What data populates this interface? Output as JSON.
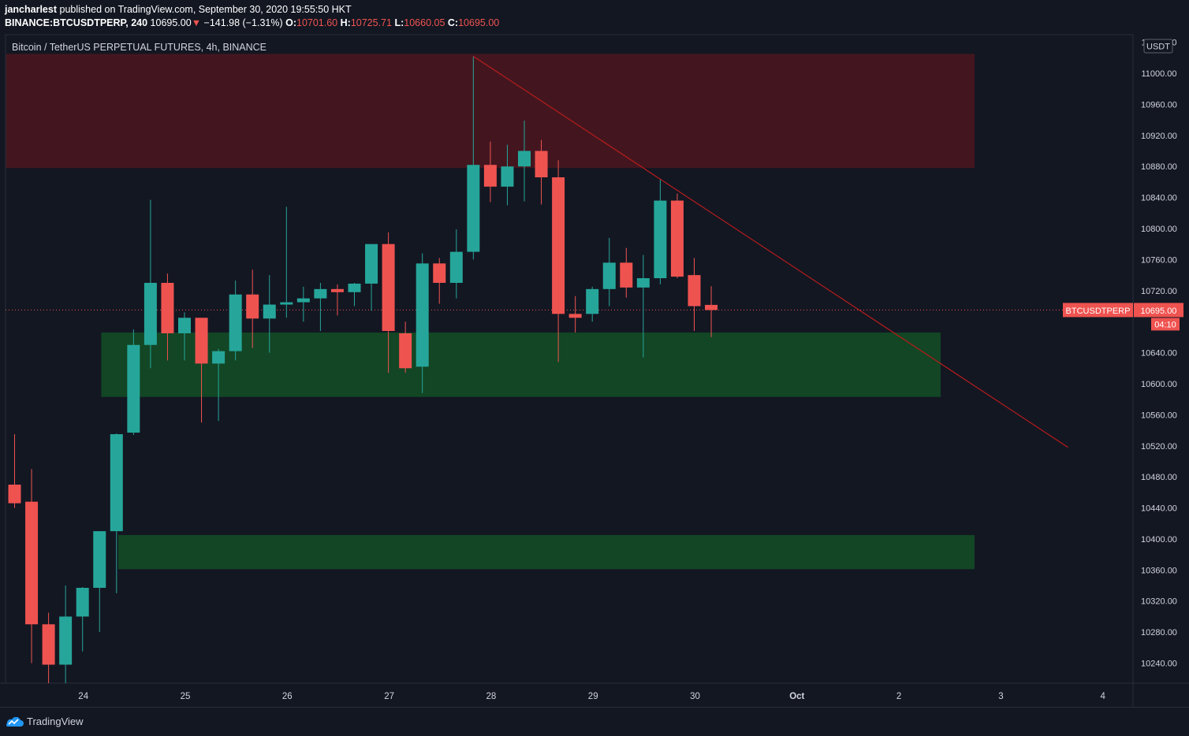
{
  "header": {
    "author": "jancharlest",
    "published_text": "published on TradingView.com, September 30, 2020 19:55:50 HKT",
    "symbol": "BINANCE:BTCUSDTPERP, 240",
    "last": "10695.00",
    "change_arrow": "▼",
    "change": "−141.98 (−1.31%)",
    "o_label": "O:",
    "o_value": "10701.60",
    "h_label": "H:",
    "h_value": "10725.71",
    "l_label": "L:",
    "l_value": "10660.05",
    "c_label": "C:",
    "c_value": "10695.00"
  },
  "chart_data": {
    "type": "candlestick",
    "title": "Bitcoin / TetherUS PERPETUAL FUTURES, 4h, BINANCE",
    "currency_label": "USDT",
    "symbol_label": "BTCUSDTPERP",
    "price_label": "10695.00",
    "countdown_label": "04:10",
    "ylim": [
      10200,
      11040
    ],
    "y_ticks": [
      10240,
      10280,
      10320,
      10360,
      10400,
      10440,
      10480,
      10520,
      10560,
      10600,
      10640,
      10680,
      10720,
      10760,
      10800,
      10840,
      10880,
      10920,
      10960,
      11000,
      11040
    ],
    "y_tick_labels": [
      "10240.00",
      "10280.00",
      "10320.00",
      "10360.00",
      "10400.00",
      "10440.00",
      "10480.00",
      "10520.00",
      "10560.00",
      "10600.00",
      "10640.00",
      "",
      "10720.00",
      "10760.00",
      "10800.00",
      "10840.00",
      "10880.00",
      "10920.00",
      "10960.00",
      "11000.00",
      "11040.00"
    ],
    "x_ticks": [
      "24",
      "25",
      "26",
      "27",
      "28",
      "29",
      "30",
      "Oct",
      "2",
      "3",
      "4"
    ],
    "x_tick_index": [
      4,
      10,
      16,
      22,
      28,
      34,
      40,
      46,
      52,
      58,
      64
    ],
    "last_price": 10695,
    "candles": [
      {
        "o": 10470,
        "h": 10535,
        "l": 10440,
        "c": 10446
      },
      {
        "o": 10448,
        "h": 10490,
        "l": 10240,
        "c": 10290
      },
      {
        "o": 10290,
        "h": 10305,
        "l": 10210,
        "c": 10238
      },
      {
        "o": 10238,
        "h": 10340,
        "l": 10212,
        "c": 10300
      },
      {
        "o": 10300,
        "h": 10338,
        "l": 10255,
        "c": 10337
      },
      {
        "o": 10337,
        "h": 10410,
        "l": 10280,
        "c": 10410
      },
      {
        "o": 10410,
        "h": 10536,
        "l": 10330,
        "c": 10535
      },
      {
        "o": 10537,
        "h": 10670,
        "l": 10534,
        "c": 10650
      },
      {
        "o": 10650,
        "h": 10837,
        "l": 10620,
        "c": 10730
      },
      {
        "o": 10730,
        "h": 10742,
        "l": 10630,
        "c": 10665
      },
      {
        "o": 10665,
        "h": 10692,
        "l": 10630,
        "c": 10685
      },
      {
        "o": 10685,
        "h": 10685,
        "l": 10550,
        "c": 10626
      },
      {
        "o": 10626,
        "h": 10645,
        "l": 10552,
        "c": 10642
      },
      {
        "o": 10642,
        "h": 10733,
        "l": 10630,
        "c": 10715
      },
      {
        "o": 10715,
        "h": 10747,
        "l": 10646,
        "c": 10684
      },
      {
        "o": 10684,
        "h": 10740,
        "l": 10640,
        "c": 10702
      },
      {
        "o": 10702,
        "h": 10828,
        "l": 10685,
        "c": 10705
      },
      {
        "o": 10705,
        "h": 10725,
        "l": 10680,
        "c": 10710
      },
      {
        "o": 10710,
        "h": 10730,
        "l": 10668,
        "c": 10722
      },
      {
        "o": 10722,
        "h": 10728,
        "l": 10688,
        "c": 10718
      },
      {
        "o": 10718,
        "h": 10730,
        "l": 10700,
        "c": 10729
      },
      {
        "o": 10729,
        "h": 10776,
        "l": 10694,
        "c": 10780
      },
      {
        "o": 10780,
        "h": 10795,
        "l": 10614,
        "c": 10668
      },
      {
        "o": 10665,
        "h": 10680,
        "l": 10614,
        "c": 10620
      },
      {
        "o": 10622,
        "h": 10768,
        "l": 10588,
        "c": 10755
      },
      {
        "o": 10755,
        "h": 10762,
        "l": 10703,
        "c": 10730
      },
      {
        "o": 10730,
        "h": 10799,
        "l": 10710,
        "c": 10770
      },
      {
        "o": 10770,
        "h": 11022,
        "l": 10760,
        "c": 10882
      },
      {
        "o": 10882,
        "h": 10912,
        "l": 10834,
        "c": 10854
      },
      {
        "o": 10854,
        "h": 10908,
        "l": 10830,
        "c": 10880
      },
      {
        "o": 10880,
        "h": 10939,
        "l": 10835,
        "c": 10900
      },
      {
        "o": 10900,
        "h": 10914,
        "l": 10831,
        "c": 10866
      },
      {
        "o": 10866,
        "h": 10888,
        "l": 10628,
        "c": 10690
      },
      {
        "o": 10690,
        "h": 10713,
        "l": 10666,
        "c": 10685
      },
      {
        "o": 10690,
        "h": 10725,
        "l": 10680,
        "c": 10722
      },
      {
        "o": 10722,
        "h": 10788,
        "l": 10700,
        "c": 10756
      },
      {
        "o": 10756,
        "h": 10775,
        "l": 10711,
        "c": 10724
      },
      {
        "o": 10724,
        "h": 10766,
        "l": 10634,
        "c": 10736
      },
      {
        "o": 10736,
        "h": 10863,
        "l": 10728,
        "c": 10836
      },
      {
        "o": 10836,
        "h": 10845,
        "l": 10736,
        "c": 10738
      },
      {
        "o": 10740,
        "h": 10762,
        "l": 10668,
        "c": 10700
      },
      {
        "o": 10701.6,
        "h": 10725.71,
        "l": 10660.05,
        "c": 10695
      }
    ],
    "zones": [
      {
        "kind": "resistance",
        "from_index": 0,
        "to_index": 57,
        "low": 10878,
        "high": 11025,
        "color": "#43161f"
      },
      {
        "kind": "support",
        "from_index": 5.6,
        "to_index": 55,
        "low": 10583,
        "high": 10666,
        "color": "#124625"
      },
      {
        "kind": "support",
        "from_index": 6.6,
        "to_index": 57,
        "low": 10361,
        "high": 10405,
        "color": "#124625"
      }
    ],
    "trendline": {
      "from": {
        "index": 27,
        "price": 11022
      },
      "to": {
        "index": 62,
        "price": 10518
      },
      "color": "#b71c1c"
    },
    "colors": {
      "up": "#26a69a",
      "down": "#ef5350",
      "background": "#131722",
      "axis_text": "#d1d4dc"
    }
  },
  "footer": {
    "brand": "TradingView"
  }
}
